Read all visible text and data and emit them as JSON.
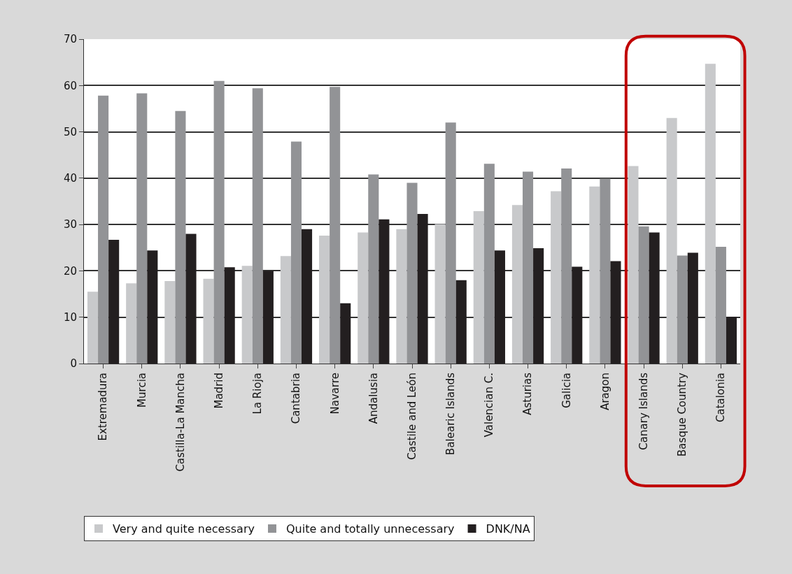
{
  "chart_data": {
    "type": "bar",
    "categories": [
      "Extremadura",
      "Murcia",
      "Castilla-La Mancha",
      "Madrid",
      "La Rioja",
      "Cantabria",
      "Navarre",
      "Andalusia",
      "Castile and León",
      "Balearic Islands",
      "Valencian C.",
      "Asturias",
      "Galicia",
      "Aragon",
      "Canary Islands",
      "Basque Country",
      "Catalonia"
    ],
    "series": [
      {
        "name": "Very and quite necessary",
        "color": "#c8c9cb",
        "values": [
          15.5,
          17.3,
          17.8,
          18.3,
          21.1,
          23.2,
          27.6,
          28.3,
          29,
          30.1,
          32.9,
          34.2,
          37.2,
          38.2,
          42.6,
          53,
          64.7
        ]
      },
      {
        "name": "Quite and totally unnecessary",
        "color": "#929396",
        "values": [
          57.8,
          58.3,
          54.5,
          61,
          59.4,
          47.9,
          59.7,
          40.8,
          39,
          52,
          43.1,
          41.4,
          42.1,
          39.9,
          29.6,
          23.3,
          25.2
        ]
      },
      {
        "name": "DNK/NA",
        "color": "#231f20",
        "values": [
          26.7,
          24.4,
          28,
          20.8,
          20,
          29,
          13,
          31.1,
          32.3,
          18,
          24.4,
          24.9,
          20.9,
          22.1,
          28.3,
          23.9,
          10.1
        ]
      }
    ],
    "ylim": [
      0,
      70
    ],
    "yticks": [
      0,
      10,
      20,
      30,
      40,
      50,
      60,
      70
    ],
    "grid": "y",
    "legend": "bottom"
  }
}
